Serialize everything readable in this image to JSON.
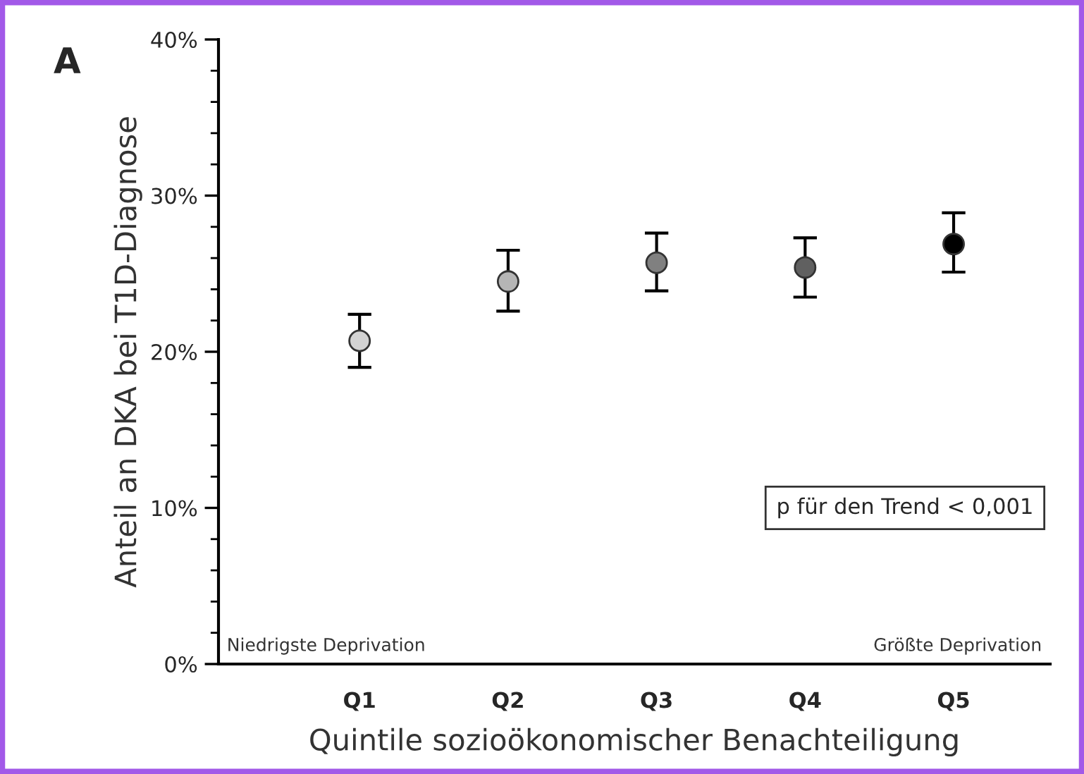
{
  "chart_data": {
    "type": "scatter",
    "xlabel": "Quintile sozioökonomischer Benachteiligung",
    "ylabel": "Anteil an DKA bei T1D-Diagnose",
    "categories": [
      "Q1",
      "Q2",
      "Q3",
      "Q4",
      "Q5"
    ],
    "values": [
      20.7,
      24.5,
      25.7,
      25.4,
      26.9
    ],
    "errors": [
      [
        19.0,
        22.4
      ],
      [
        22.6,
        26.5
      ],
      [
        23.9,
        27.6
      ],
      [
        23.5,
        27.3
      ],
      [
        25.1,
        28.9
      ]
    ],
    "colors": [
      "#d3d3d3",
      "#b5b5b5",
      "#808080",
      "#606060",
      "#000000"
    ],
    "marker": "circle",
    "ylim": [
      0,
      40
    ],
    "yticks": [
      {
        "value": 0,
        "label": "0%"
      },
      {
        "value": 10,
        "label": "10%"
      },
      {
        "value": 20,
        "label": "20%"
      },
      {
        "value": 30,
        "label": "30%"
      },
      {
        "value": 40,
        "label": "40%"
      }
    ],
    "grid": false,
    "annotations": [
      "A",
      "p für den Trend < 0,001",
      "Niedrigste Deprivation",
      "Größte Deprivation"
    ]
  }
}
